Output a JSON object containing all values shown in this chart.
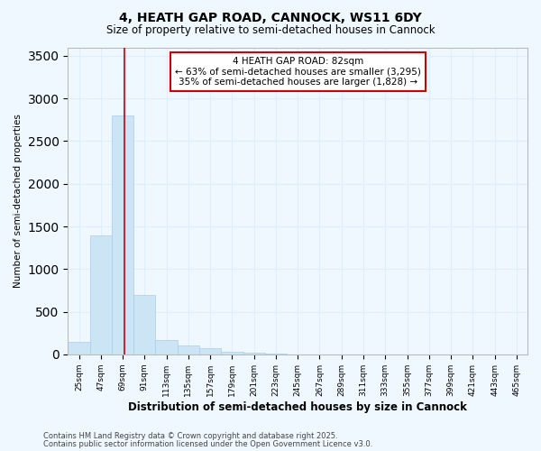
{
  "title": "4, HEATH GAP ROAD, CANNOCK, WS11 6DY",
  "subtitle": "Size of property relative to semi-detached houses in Cannock",
  "xlabel": "Distribution of semi-detached houses by size in Cannock",
  "ylabel": "Number of semi-detached properties",
  "footnote1": "Contains HM Land Registry data © Crown copyright and database right 2025.",
  "footnote2": "Contains public sector information licensed under the Open Government Licence v3.0.",
  "annotation_title": "4 HEATH GAP ROAD: 82sqm",
  "annotation_line1": "← 63% of semi-detached houses are smaller (3,295)",
  "annotation_line2": "35% of semi-detached houses are larger (1,828) →",
  "property_size": 82,
  "bar_color": "#cce5f5",
  "bar_edge_color": "#aaccee",
  "vline_color": "#cc0000",
  "annotation_box_edge_color": "#cc0000",
  "annotation_box_face_color": "#ffffff",
  "bins_start": [
    25,
    47,
    69,
    91,
    113,
    135,
    157,
    179,
    201,
    223,
    245,
    267,
    289,
    311,
    333,
    355,
    377,
    399,
    421,
    443,
    465
  ],
  "counts": [
    150,
    1390,
    2800,
    700,
    165,
    105,
    75,
    35,
    20,
    5,
    2,
    1,
    1,
    0,
    0,
    0,
    0,
    0,
    0,
    0,
    0
  ],
  "bin_width": 22,
  "ylim": [
    0,
    3600
  ],
  "yticks": [
    0,
    500,
    1000,
    1500,
    2000,
    2500,
    3000,
    3500
  ],
  "background_color": "#f0f8ff",
  "grid_color": "#ddeeff",
  "title_fontsize": 10,
  "subtitle_fontsize": 8.5,
  "ylabel_fontsize": 7.5,
  "xlabel_fontsize": 8.5,
  "tick_fontsize": 6.5,
  "footnote_fontsize": 6,
  "annotation_fontsize": 7.5
}
